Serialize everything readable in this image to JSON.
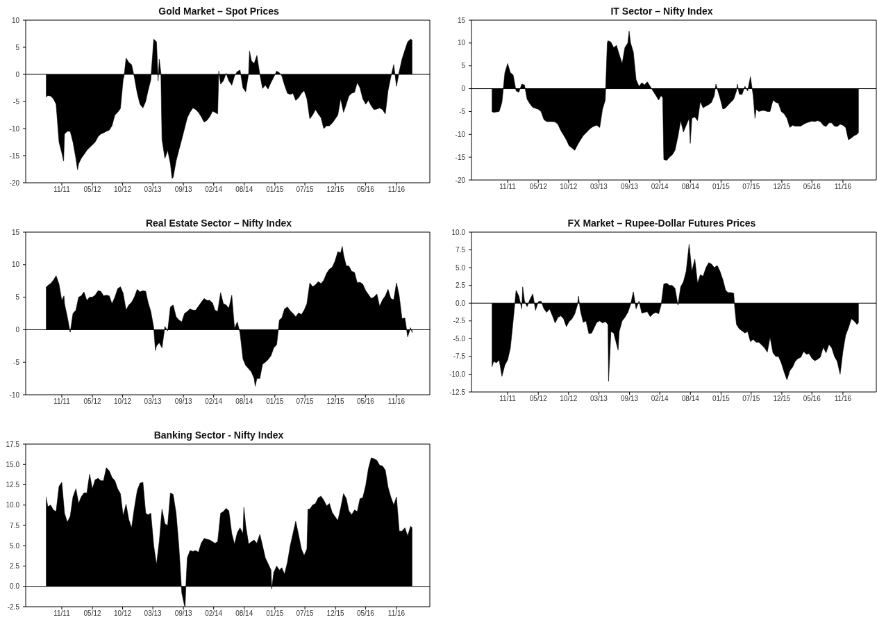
{
  "chart_data": [
    {
      "type": "area",
      "title": "Gold Market – Spot Prices",
      "color": "#000000",
      "x": [
        "2011-08-22",
        "2011-09-01",
        "2011-09-16",
        "2011-10-01",
        "2011-10-16",
        "2011-11-01",
        "2011-11-16",
        "2011-11-26",
        "2011-12-01",
        "2011-12-16",
        "2012-01-01",
        "2012-01-16",
        "2012-02-01",
        "2012-02-10",
        "2012-02-16",
        "2012-03-01",
        "2012-03-16",
        "2012-04-01",
        "2012-04-16",
        "2012-05-01",
        "2012-05-16",
        "2012-06-01",
        "2012-06-16",
        "2012-07-01",
        "2012-07-16",
        "2012-08-01",
        "2012-08-16",
        "2012-09-01",
        "2012-09-16",
        "2012-10-01",
        "2012-10-16",
        "2012-10-21",
        "2012-11-01",
        "2012-11-16",
        "2012-12-01",
        "2012-12-16",
        "2013-01-01",
        "2013-01-16",
        "2013-02-01",
        "2013-02-16",
        "2013-03-01",
        "2013-03-16",
        "2013-03-20",
        "2013-04-01",
        "2013-04-16",
        "2013-04-25",
        "2013-05-01",
        "2013-05-10",
        "2013-05-16",
        "2013-06-01",
        "2013-06-16",
        "2013-07-01",
        "2013-07-10",
        "2013-07-16",
        "2013-08-01",
        "2013-08-16",
        "2013-09-01",
        "2013-09-16",
        "2013-10-01",
        "2013-10-16",
        "2013-11-01",
        "2013-11-16",
        "2013-12-01",
        "2013-12-16",
        "2014-01-01",
        "2014-01-16",
        "2014-02-01",
        "2014-02-16",
        "2014-03-01",
        "2014-03-16",
        "2014-03-22",
        "2014-04-01",
        "2014-04-16",
        "2014-05-01",
        "2014-05-16",
        "2014-06-01",
        "2014-06-16",
        "2014-07-01",
        "2014-07-16",
        "2014-08-01",
        "2014-08-16",
        "2014-09-01",
        "2014-09-06",
        "2014-09-16",
        "2014-10-01",
        "2014-10-16",
        "2014-11-01",
        "2014-11-16",
        "2014-12-01",
        "2014-12-16",
        "2015-01-01",
        "2015-01-16",
        "2015-02-01",
        "2015-02-16",
        "2015-03-01",
        "2015-03-16",
        "2015-04-01",
        "2015-04-16",
        "2015-05-01",
        "2015-05-16",
        "2015-06-01",
        "2015-06-16",
        "2015-07-01",
        "2015-07-16",
        "2015-08-01",
        "2015-08-16",
        "2015-09-01",
        "2015-09-16",
        "2015-10-01",
        "2015-10-16",
        "2015-11-01",
        "2015-11-16",
        "2015-12-01",
        "2015-12-16",
        "2016-01-01",
        "2016-01-16",
        "2016-02-01",
        "2016-02-16",
        "2016-03-01",
        "2016-03-16",
        "2016-04-01",
        "2016-04-16",
        "2016-05-01",
        "2016-05-16",
        "2016-06-01",
        "2016-06-16",
        "2016-07-01",
        "2016-07-16",
        "2016-08-01",
        "2016-08-16",
        "2016-09-01",
        "2016-09-16",
        "2016-10-01",
        "2016-10-16",
        "2016-11-01",
        "2016-11-16",
        "2016-12-01",
        "2016-12-16",
        "2017-01-01",
        "2017-01-16",
        "2017-02-01",
        "2017-02-10"
      ],
      "values": [
        -4.2,
        -3.9,
        -4.0,
        -4.5,
        -5.5,
        -12.5,
        -14.5,
        -16,
        -11,
        -10.5,
        -10.5,
        -12.5,
        -15.5,
        -17.6,
        -16.5,
        -15.5,
        -14.8,
        -14,
        -13.5,
        -13,
        -12.5,
        -11.5,
        -11,
        -10.8,
        -10.5,
        -10.3,
        -9.5,
        -7.5,
        -7,
        -6.3,
        -1,
        -0.3,
        3,
        2.2,
        1.8,
        -0.5,
        -3.5,
        -5.5,
        -6.2,
        -5,
        -3,
        -1,
        1,
        6.5,
        6,
        -1.2,
        2.8,
        0.3,
        -12,
        -15.5,
        -14,
        -16.5,
        -19.2,
        -19,
        -16,
        -14,
        -12,
        -10,
        -8,
        -7,
        -6.2,
        -6.5,
        -7,
        -7.8,
        -8.8,
        -8.5,
        -7.8,
        -6.8,
        -7,
        -7.3,
        0.6,
        -1.8,
        -1.2,
        0.2,
        -1.2,
        -2,
        -0.3,
        0.5,
        0.8,
        -2.5,
        -3.2,
        0.2,
        4.3,
        2.5,
        2,
        3.5,
        0,
        -2.6,
        -2,
        -2.7,
        -1.5,
        -0.5,
        0.6,
        0.3,
        -0.3,
        -2,
        -3.5,
        -3.7,
        -3.5,
        -4.8,
        -4.3,
        -3.5,
        -3,
        -4.5,
        -8.2,
        -7.5,
        -6.5,
        -7.3,
        -8,
        -10,
        -9.5,
        -9.5,
        -9,
        -8.3,
        -7.5,
        -4.5,
        -7,
        -5.5,
        -4,
        -3.5,
        -3.3,
        -1.5,
        -2.5,
        -4.5,
        -5.5,
        -4.8,
        -5.8,
        -6.5,
        -6.4,
        -6.2,
        -6.5,
        -7.3,
        -3,
        -0.5,
        1.8,
        -2.2,
        0.5,
        2.8,
        4.5,
        6,
        6.5,
        6.3
      ],
      "xlim": [
        "2011-05-03",
        "2017-05-17"
      ],
      "xticks": [
        {
          "value": "2011-11-16",
          "label": "11/11"
        },
        {
          "value": "2012-05-01",
          "label": "05/12"
        },
        {
          "value": "2012-10-13",
          "label": "10/12"
        },
        {
          "value": "2013-03-27",
          "label": "03/13"
        },
        {
          "value": "2013-09-10",
          "label": "09/13"
        },
        {
          "value": "2014-02-22",
          "label": "02/14"
        },
        {
          "value": "2014-08-08",
          "label": "08/14"
        },
        {
          "value": "2015-01-22",
          "label": "01/15"
        },
        {
          "value": "2015-07-05",
          "label": "07/15"
        },
        {
          "value": "2015-12-19",
          "label": "12/15"
        },
        {
          "value": "2016-05-31",
          "label": "05/16"
        },
        {
          "value": "2016-11-16",
          "label": "11/16"
        }
      ],
      "ylim": [
        -20,
        10
      ],
      "yticks": [
        10,
        5,
        0,
        -5,
        -10,
        -15,
        -20
      ],
      "ref_lines": [
        {
          "axis": "y",
          "value": 0,
          "color": "#000000"
        }
      ]
    },
    {
      "type": "area",
      "title": "IT Sector – Nifty Index",
      "color": "#000000",
      "x": [
        "2011-08-22",
        "2011-09-01",
        "2011-09-16",
        "2011-10-01",
        "2011-10-16",
        "2011-11-01",
        "2011-11-16",
        "2011-12-01",
        "2011-12-16",
        "2012-01-01",
        "2012-01-16",
        "2012-02-01",
        "2012-02-16",
        "2012-03-01",
        "2012-03-16",
        "2012-04-01",
        "2012-04-16",
        "2012-05-01",
        "2012-05-16",
        "2012-06-01",
        "2012-06-16",
        "2012-07-01",
        "2012-07-16",
        "2012-08-01",
        "2012-08-16",
        "2012-09-01",
        "2012-09-16",
        "2012-10-01",
        "2012-10-16",
        "2012-11-01",
        "2012-11-16",
        "2012-12-01",
        "2012-12-16",
        "2013-01-01",
        "2013-01-16",
        "2013-02-01",
        "2013-02-16",
        "2013-03-01",
        "2013-03-16",
        "2013-04-01",
        "2013-04-16",
        "2013-05-01",
        "2013-05-12",
        "2013-05-16",
        "2013-06-01",
        "2013-06-16",
        "2013-07-01",
        "2013-07-16",
        "2013-08-01",
        "2013-08-16",
        "2013-09-01",
        "2013-09-08",
        "2013-09-16",
        "2013-10-01",
        "2013-10-16",
        "2013-11-01",
        "2013-11-16",
        "2013-12-01",
        "2013-12-16",
        "2014-01-01",
        "2014-01-16",
        "2014-02-01",
        "2014-02-16",
        "2014-03-01",
        "2014-03-10",
        "2014-03-16",
        "2014-04-01",
        "2014-04-16",
        "2014-05-01",
        "2014-05-16",
        "2014-06-01",
        "2014-06-16",
        "2014-07-01",
        "2014-07-16",
        "2014-08-01",
        "2014-08-07",
        "2014-08-16",
        "2014-09-01",
        "2014-09-16",
        "2014-10-01",
        "2014-10-16",
        "2014-11-01",
        "2014-11-16",
        "2014-12-01",
        "2014-12-16",
        "2014-12-25",
        "2015-01-01",
        "2015-01-16",
        "2015-02-01",
        "2015-02-16",
        "2015-03-01",
        "2015-03-16",
        "2015-04-01",
        "2015-04-16",
        "2015-04-21",
        "2015-05-01",
        "2015-05-16",
        "2015-06-01",
        "2015-06-16",
        "2015-07-01",
        "2015-07-16",
        "2015-07-26",
        "2015-08-01",
        "2015-08-16",
        "2015-09-01",
        "2015-09-16",
        "2015-10-01",
        "2015-10-16",
        "2015-11-01",
        "2015-11-16",
        "2015-12-01",
        "2015-12-16",
        "2016-01-01",
        "2016-01-16",
        "2016-02-01",
        "2016-02-16",
        "2016-03-01",
        "2016-03-16",
        "2016-04-01",
        "2016-04-16",
        "2016-05-01",
        "2016-05-16",
        "2016-06-01",
        "2016-06-16",
        "2016-07-01",
        "2016-07-16",
        "2016-08-01",
        "2016-08-16",
        "2016-09-01",
        "2016-09-16",
        "2016-10-01",
        "2016-10-16",
        "2016-11-01",
        "2016-11-16",
        "2016-12-01",
        "2016-12-16",
        "2017-01-01",
        "2017-01-16",
        "2017-02-01",
        "2017-02-10"
      ],
      "values": [
        -5,
        -5.2,
        -5.1,
        -5,
        -3,
        3.5,
        5.5,
        3.5,
        3,
        -0.5,
        -0.8,
        1,
        0.8,
        -2.3,
        -3.3,
        -4.1,
        -4.3,
        -4.5,
        -5,
        -6.8,
        -7.2,
        -7.2,
        -7.2,
        -7.3,
        -7.8,
        -9.2,
        -10.2,
        -11.2,
        -12.5,
        -13,
        -13.5,
        -12.3,
        -11.3,
        -10.3,
        -9.7,
        -9,
        -8.5,
        -8.2,
        -8,
        -8.5,
        -4.5,
        -2.5,
        10,
        10.5,
        10.2,
        9,
        9.5,
        7.5,
        5.5,
        9,
        10,
        12.6,
        10,
        8,
        2,
        0.5,
        1.3,
        0.8,
        1.5,
        0.5,
        -0.5,
        -1.5,
        -2.5,
        -1.5,
        -2,
        -15.5,
        -15.7,
        -15,
        -14.5,
        -13.5,
        -10.5,
        -7,
        -9.5,
        -8,
        -6.5,
        -12,
        -6.5,
        -6.2,
        -7,
        -2.8,
        -4.2,
        -3.8,
        -3.5,
        -3,
        -1.5,
        1,
        0,
        -2,
        -4.5,
        -4.2,
        -3.6,
        -3,
        -2.3,
        -0.5,
        1,
        -1.2,
        -1.3,
        0.5,
        -0.5,
        2.6,
        -1.5,
        -6.5,
        -4.5,
        -5,
        -4.8,
        -4.8,
        -5,
        -5,
        -2.5,
        -3,
        -3.2,
        -5,
        -5.5,
        -6.5,
        -8.5,
        -8,
        -8.2,
        -8.2,
        -8.2,
        -7.8,
        -7.5,
        -7.3,
        -7.1,
        -7.2,
        -7,
        -7.2,
        -8,
        -8.3,
        -7.5,
        -7.5,
        -8.2,
        -8.3,
        -7.8,
        -8,
        -8.5,
        -11.2,
        -10.8,
        -10.3,
        -10,
        -9.5
      ],
      "xlim": [
        "2011-05-03",
        "2017-05-17"
      ],
      "xticks": [
        {
          "value": "2011-11-16",
          "label": "11/11"
        },
        {
          "value": "2012-05-01",
          "label": "05/12"
        },
        {
          "value": "2012-10-13",
          "label": "10/12"
        },
        {
          "value": "2013-03-27",
          "label": "03/13"
        },
        {
          "value": "2013-09-10",
          "label": "09/13"
        },
        {
          "value": "2014-02-22",
          "label": "02/14"
        },
        {
          "value": "2014-08-08",
          "label": "08/14"
        },
        {
          "value": "2015-01-22",
          "label": "01/15"
        },
        {
          "value": "2015-07-05",
          "label": "07/15"
        },
        {
          "value": "2015-12-19",
          "label": "12/15"
        },
        {
          "value": "2016-05-31",
          "label": "05/16"
        },
        {
          "value": "2016-11-16",
          "label": "11/16"
        }
      ],
      "ylim": [
        -20,
        15
      ],
      "yticks": [
        15,
        10,
        5,
        0,
        -5,
        -10,
        -15,
        -20
      ],
      "ref_lines": [
        {
          "axis": "y",
          "value": 0,
          "color": "#000000"
        }
      ]
    },
    {
      "type": "area",
      "title": "Real Estate Sector – Nifty Index",
      "color": "#000000",
      "x": [
        "2011-08-22",
        "2011-09-01",
        "2011-09-16",
        "2011-10-01",
        "2011-10-16",
        "2011-11-01",
        "2011-11-16",
        "2011-11-28",
        "2011-12-01",
        "2011-12-16",
        "2012-01-01",
        "2012-01-16",
        "2012-02-01",
        "2012-02-16",
        "2012-03-01",
        "2012-03-16",
        "2012-04-01",
        "2012-04-16",
        "2012-05-01",
        "2012-05-16",
        "2012-06-01",
        "2012-06-16",
        "2012-07-01",
        "2012-07-16",
        "2012-08-01",
        "2012-08-16",
        "2012-09-01",
        "2012-09-16",
        "2012-10-01",
        "2012-10-16",
        "2012-11-01",
        "2012-11-16",
        "2012-12-01",
        "2012-12-16",
        "2013-01-01",
        "2013-01-16",
        "2013-02-01",
        "2013-02-16",
        "2013-03-01",
        "2013-03-16",
        "2013-04-01",
        "2013-04-10",
        "2013-04-16",
        "2013-05-01",
        "2013-05-16",
        "2013-06-01",
        "2013-06-16",
        "2013-07-01",
        "2013-07-16",
        "2013-08-01",
        "2013-08-16",
        "2013-09-01",
        "2013-09-16",
        "2013-10-01",
        "2013-10-16",
        "2013-11-01",
        "2013-11-16",
        "2013-12-01",
        "2013-12-16",
        "2014-01-01",
        "2014-01-16",
        "2014-02-01",
        "2014-02-16",
        "2014-03-01",
        "2014-03-16",
        "2014-04-01",
        "2014-04-16",
        "2014-05-01",
        "2014-05-16",
        "2014-06-01",
        "2014-06-16",
        "2014-07-01",
        "2014-07-16",
        "2014-08-01",
        "2014-08-16",
        "2014-09-01",
        "2014-09-16",
        "2014-10-01",
        "2014-10-07",
        "2014-10-16",
        "2014-11-01",
        "2014-11-16",
        "2014-12-01",
        "2014-12-16",
        "2015-01-01",
        "2015-01-16",
        "2015-02-01",
        "2015-02-16",
        "2015-03-01",
        "2015-03-16",
        "2015-04-01",
        "2015-04-16",
        "2015-05-01",
        "2015-05-16",
        "2015-06-01",
        "2015-06-16",
        "2015-07-01",
        "2015-07-16",
        "2015-08-01",
        "2015-08-16",
        "2015-09-01",
        "2015-09-16",
        "2015-10-01",
        "2015-10-16",
        "2015-11-01",
        "2015-11-16",
        "2015-12-01",
        "2015-12-16",
        "2016-01-01",
        "2016-01-16",
        "2016-01-25",
        "2016-02-01",
        "2016-02-16",
        "2016-03-01",
        "2016-03-16",
        "2016-04-01",
        "2016-04-16",
        "2016-05-01",
        "2016-05-16",
        "2016-06-01",
        "2016-06-16",
        "2016-07-01",
        "2016-07-16",
        "2016-08-01",
        "2016-08-16",
        "2016-09-01",
        "2016-09-16",
        "2016-10-01",
        "2016-10-16",
        "2016-11-01",
        "2016-11-16",
        "2016-12-01",
        "2016-12-16",
        "2017-01-01",
        "2017-01-16",
        "2017-02-01",
        "2017-02-10"
      ],
      "values": [
        6.5,
        6.8,
        7.1,
        7.6,
        8.3,
        7,
        4.5,
        5.2,
        4,
        2,
        -0.4,
        2.5,
        3,
        5,
        5.2,
        5.8,
        4.5,
        5,
        5,
        5.3,
        6,
        5.9,
        5.2,
        5.3,
        5.2,
        4,
        5,
        6.3,
        6.6,
        5.6,
        3,
        3.8,
        4.2,
        5,
        6.2,
        5.8,
        6,
        5.9,
        4.2,
        2.8,
        0.3,
        -3.2,
        -2.5,
        -2,
        -2.8,
        0.5,
        -0.2,
        3.5,
        3.8,
        2,
        1.5,
        1.2,
        2.5,
        2.8,
        3.2,
        3,
        3,
        3.6,
        4.2,
        4.8,
        4.5,
        4.5,
        4.1,
        3,
        2.8,
        5.7,
        4,
        3.8,
        3.3,
        5.3,
        0.2,
        1.2,
        -0.5,
        -4.5,
        -5.5,
        -6,
        -6.5,
        -7.5,
        -8.7,
        -7.5,
        -7.5,
        -5.3,
        -5,
        -4.6,
        -4,
        -2.8,
        -2.3,
        1.5,
        1.8,
        3.2,
        3.5,
        2.9,
        2.5,
        2,
        2.6,
        2.3,
        3,
        4,
        7.2,
        6.6,
        6.9,
        7.4,
        7.1,
        7.6,
        8.7,
        9.3,
        9.6,
        10.5,
        12,
        11.8,
        12.8,
        11.5,
        9.8,
        9.8,
        9,
        8.8,
        7.2,
        7.3,
        7,
        6,
        5.4,
        4.8,
        5,
        5.5,
        3.6,
        4.6,
        5.2,
        6.2,
        4.8,
        4.6,
        7.2,
        5.2,
        1.7,
        1.8,
        -1.1,
        0.3,
        -0.5
      ],
      "xlim": [
        "2011-05-03",
        "2017-05-17"
      ],
      "xticks": [
        {
          "value": "2011-11-16",
          "label": "11/11"
        },
        {
          "value": "2012-05-01",
          "label": "05/12"
        },
        {
          "value": "2012-10-13",
          "label": "10/12"
        },
        {
          "value": "2013-03-27",
          "label": "03/13"
        },
        {
          "value": "2013-09-10",
          "label": "09/13"
        },
        {
          "value": "2014-02-22",
          "label": "02/14"
        },
        {
          "value": "2014-08-08",
          "label": "08/14"
        },
        {
          "value": "2015-01-22",
          "label": "01/15"
        },
        {
          "value": "2015-07-05",
          "label": "07/15"
        },
        {
          "value": "2015-12-19",
          "label": "12/15"
        },
        {
          "value": "2016-05-31",
          "label": "05/16"
        },
        {
          "value": "2016-11-16",
          "label": "11/16"
        }
      ],
      "ylim": [
        -10,
        15
      ],
      "yticks": [
        15,
        10,
        5,
        0,
        -5,
        -10
      ],
      "ref_lines": [
        {
          "axis": "y",
          "value": 0,
          "color": "#000000"
        }
      ]
    },
    {
      "type": "area",
      "title": "FX Market – Rupee-Dollar Futures Prices",
      "color": "#000000",
      "x": [
        "2011-08-22",
        "2011-09-01",
        "2011-09-16",
        "2011-10-01",
        "2011-10-16",
        "2011-11-01",
        "2011-11-16",
        "2011-12-01",
        "2011-12-16",
        "2012-01-01",
        "2012-01-16",
        "2012-02-01",
        "2012-02-06",
        "2012-02-16",
        "2012-03-01",
        "2012-03-16",
        "2012-04-01",
        "2012-04-16",
        "2012-05-01",
        "2012-05-16",
        "2012-06-01",
        "2012-06-16",
        "2012-07-01",
        "2012-07-16",
        "2012-08-01",
        "2012-08-16",
        "2012-09-01",
        "2012-09-16",
        "2012-10-01",
        "2012-10-16",
        "2012-11-01",
        "2012-11-16",
        "2012-12-01",
        "2012-12-06",
        "2012-12-16",
        "2013-01-01",
        "2013-01-16",
        "2013-02-01",
        "2013-02-16",
        "2013-03-01",
        "2013-03-16",
        "2013-04-01",
        "2013-04-16",
        "2013-05-01",
        "2013-05-16",
        "2013-05-19",
        "2013-06-01",
        "2013-06-16",
        "2013-07-01",
        "2013-07-10",
        "2013-07-16",
        "2013-08-01",
        "2013-08-16",
        "2013-09-01",
        "2013-09-16",
        "2013-10-01",
        "2013-10-16",
        "2013-11-01",
        "2013-11-16",
        "2013-12-01",
        "2013-12-16",
        "2014-01-01",
        "2014-01-16",
        "2014-02-01",
        "2014-02-16",
        "2014-03-01",
        "2014-03-16",
        "2014-04-01",
        "2014-04-16",
        "2014-05-01",
        "2014-05-16",
        "2014-06-01",
        "2014-06-16",
        "2014-07-01",
        "2014-07-16",
        "2014-08-01",
        "2014-08-16",
        "2014-09-01",
        "2014-09-16",
        "2014-10-01",
        "2014-10-16",
        "2014-11-01",
        "2014-11-16",
        "2014-12-01",
        "2014-12-16",
        "2015-01-01",
        "2015-01-16",
        "2015-02-01",
        "2015-02-16",
        "2015-03-01",
        "2015-03-16",
        "2015-04-01",
        "2015-04-06",
        "2015-04-16",
        "2015-05-01",
        "2015-05-16",
        "2015-06-01",
        "2015-06-16",
        "2015-07-01",
        "2015-07-16",
        "2015-08-01",
        "2015-08-16",
        "2015-09-01",
        "2015-09-16",
        "2015-10-01",
        "2015-10-16",
        "2015-11-01",
        "2015-11-16",
        "2015-12-01",
        "2015-12-16",
        "2016-01-01",
        "2016-01-16",
        "2016-02-01",
        "2016-02-16",
        "2016-03-01",
        "2016-03-16",
        "2016-04-01",
        "2016-04-16",
        "2016-05-01",
        "2016-05-16",
        "2016-06-01",
        "2016-06-16",
        "2016-07-01",
        "2016-07-16",
        "2016-08-01",
        "2016-08-16",
        "2016-09-01",
        "2016-09-16",
        "2016-10-01",
        "2016-10-16",
        "2016-11-01",
        "2016-11-16",
        "2016-12-01",
        "2016-12-16",
        "2017-01-01",
        "2017-01-16",
        "2017-02-01",
        "2017-02-10"
      ],
      "values": [
        -9,
        -8.2,
        -8.4,
        -8,
        -10.3,
        -8.7,
        -8,
        -6.3,
        -2.5,
        1.8,
        1,
        -0.8,
        2.3,
        0.3,
        -0.5,
        0.5,
        1.3,
        -1,
        0.2,
        0.3,
        -0.8,
        -1.3,
        -0.8,
        -1.7,
        -2.8,
        -2,
        -1.8,
        -2.2,
        -3.3,
        -2.6,
        -2.2,
        -1.5,
        -0.2,
        1,
        -1,
        -2.7,
        -2.5,
        -4.3,
        -4.2,
        -3.5,
        -2.7,
        -2.5,
        -2.8,
        -2.6,
        -3,
        -11,
        -4,
        -4.2,
        -5.7,
        -6.6,
        -4,
        -2.5,
        -2,
        -1.3,
        -0.2,
        1.6,
        -0.8,
        0.3,
        -1.4,
        -1.3,
        -1.2,
        -1.9,
        -1.5,
        -1.3,
        -1.5,
        -0.3,
        2.7,
        2.8,
        2.5,
        2.5,
        2.1,
        -0.3,
        2.3,
        3,
        4.5,
        8.3,
        4.5,
        6.2,
        2.8,
        4,
        3.8,
        5,
        5.7,
        5.5,
        5,
        5.3,
        4.5,
        3.3,
        1.8,
        1.5,
        1.5,
        1.4,
        -0.5,
        -3,
        -3.6,
        -3.9,
        -4.2,
        -4,
        -5.4,
        -5.1,
        -5.5,
        -5.5,
        -5.9,
        -6.3,
        -6.9,
        -4.8,
        -7,
        -7.5,
        -7.5,
        -8.4,
        -9.7,
        -10.8,
        -9.5,
        -9,
        -8.2,
        -7.8,
        -7.6,
        -6.8,
        -7.2,
        -7.1,
        -7.8,
        -8.1,
        -7.9,
        -7.6,
        -6.2,
        -7,
        -5.8,
        -6.3,
        -7.5,
        -8.2,
        -10,
        -6.8,
        -4.5,
        -3.5,
        -2.2,
        -2.5,
        -3,
        -2.7
      ],
      "xlim": [
        "2011-05-03",
        "2017-05-17"
      ],
      "xticks": [
        {
          "value": "2011-11-16",
          "label": "11/11"
        },
        {
          "value": "2012-05-01",
          "label": "05/12"
        },
        {
          "value": "2012-10-13",
          "label": "10/12"
        },
        {
          "value": "2013-03-27",
          "label": "03/13"
        },
        {
          "value": "2013-09-10",
          "label": "09/13"
        },
        {
          "value": "2014-02-22",
          "label": "02/14"
        },
        {
          "value": "2014-08-08",
          "label": "08/14"
        },
        {
          "value": "2015-01-22",
          "label": "01/15"
        },
        {
          "value": "2015-07-05",
          "label": "07/15"
        },
        {
          "value": "2015-12-19",
          "label": "12/15"
        },
        {
          "value": "2016-05-31",
          "label": "05/16"
        },
        {
          "value": "2016-11-16",
          "label": "11/16"
        }
      ],
      "ylim": [
        -12.5,
        10
      ],
      "yticks": [
        {
          "value": 10,
          "label": "10.0"
        },
        7.5,
        {
          "value": 5,
          "label": "5.0"
        },
        2.5,
        {
          "value": 0,
          "label": "0.0"
        },
        -2.5,
        {
          "value": -5,
          "label": "-5.0"
        },
        -7.5,
        {
          "value": -10,
          "label": "-10.0"
        },
        -12.5
      ],
      "ref_lines": [
        {
          "axis": "y",
          "value": 0,
          "color": "#000000"
        }
      ]
    },
    {
      "type": "area",
      "title": "Banking Sector - Nifty Index",
      "color": "#000000",
      "x": [
        "2011-08-22",
        "2011-09-01",
        "2011-09-16",
        "2011-10-01",
        "2011-10-16",
        "2011-11-01",
        "2011-11-16",
        "2011-12-01",
        "2011-12-16",
        "2012-01-01",
        "2012-01-16",
        "2012-02-01",
        "2012-02-16",
        "2012-03-01",
        "2012-03-16",
        "2012-04-01",
        "2012-04-16",
        "2012-05-01",
        "2012-05-16",
        "2012-06-01",
        "2012-06-16",
        "2012-07-01",
        "2012-07-16",
        "2012-08-01",
        "2012-08-16",
        "2012-09-01",
        "2012-09-16",
        "2012-10-01",
        "2012-10-16",
        "2012-11-01",
        "2012-11-16",
        "2012-12-01",
        "2012-12-16",
        "2013-01-01",
        "2013-01-16",
        "2013-02-01",
        "2013-02-16",
        "2013-03-01",
        "2013-03-16",
        "2013-04-01",
        "2013-04-16",
        "2013-05-01",
        "2013-05-16",
        "2013-06-01",
        "2013-06-16",
        "2013-07-01",
        "2013-07-16",
        "2013-08-01",
        "2013-08-16",
        "2013-09-01",
        "2013-09-16",
        "2013-09-19",
        "2013-09-25",
        "2013-10-01",
        "2013-10-16",
        "2013-11-01",
        "2013-11-16",
        "2013-12-01",
        "2013-12-16",
        "2014-01-01",
        "2014-01-16",
        "2014-02-01",
        "2014-02-16",
        "2014-03-01",
        "2014-03-16",
        "2014-04-01",
        "2014-04-16",
        "2014-05-01",
        "2014-05-16",
        "2014-06-01",
        "2014-06-16",
        "2014-07-01",
        "2014-07-16",
        "2014-08-01",
        "2014-08-06",
        "2014-08-16",
        "2014-09-01",
        "2014-09-16",
        "2014-10-01",
        "2014-10-16",
        "2014-11-01",
        "2014-11-16",
        "2014-12-01",
        "2014-12-16",
        "2015-01-01",
        "2015-01-05",
        "2015-01-16",
        "2015-02-01",
        "2015-02-16",
        "2015-03-01",
        "2015-03-16",
        "2015-04-01",
        "2015-04-16",
        "2015-05-01",
        "2015-05-16",
        "2015-06-01",
        "2015-06-16",
        "2015-07-01",
        "2015-07-16",
        "2015-07-22",
        "2015-08-01",
        "2015-08-16",
        "2015-09-01",
        "2015-09-16",
        "2015-10-01",
        "2015-10-16",
        "2015-11-01",
        "2015-11-16",
        "2015-12-01",
        "2015-12-16",
        "2016-01-01",
        "2016-01-16",
        "2016-02-01",
        "2016-02-16",
        "2016-03-01",
        "2016-03-16",
        "2016-04-01",
        "2016-04-16",
        "2016-05-01",
        "2016-05-16",
        "2016-06-01",
        "2016-06-16",
        "2016-07-01",
        "2016-07-16",
        "2016-08-01",
        "2016-08-16",
        "2016-09-01",
        "2016-09-16",
        "2016-10-01",
        "2016-10-16",
        "2016-11-01",
        "2016-11-16",
        "2016-12-01",
        "2016-12-16",
        "2017-01-01",
        "2017-01-16",
        "2017-02-01",
        "2017-02-10"
      ],
      "values": [
        11,
        9.8,
        10,
        9.4,
        9.2,
        12.3,
        12.8,
        9,
        7.9,
        8.6,
        11,
        12,
        10.2,
        11,
        11.5,
        11.5,
        13.8,
        12,
        13.1,
        13.3,
        13,
        13,
        14.6,
        14.2,
        13.4,
        13,
        12,
        11.4,
        8.7,
        10.1,
        8.2,
        7.2,
        9.6,
        11.8,
        12.7,
        12.8,
        9,
        8.8,
        9,
        5,
        2.7,
        5.5,
        9.5,
        7.7,
        7.5,
        11.5,
        11.3,
        9,
        5,
        -0.8,
        -2.4,
        -2.5,
        0.8,
        3.5,
        4.4,
        4.3,
        4.4,
        4.2,
        5.3,
        5.9,
        5.8,
        5.7,
        5.5,
        5.3,
        5.5,
        9,
        9.2,
        9.6,
        9.3,
        6.5,
        5.2,
        6.6,
        7.2,
        6.5,
        9.7,
        7.5,
        5.2,
        5.5,
        5.7,
        5.3,
        6.4,
        5,
        3.5,
        2.8,
        2,
        -0.3,
        1.7,
        2.5,
        2,
        2.3,
        1.5,
        3,
        5,
        6.5,
        8,
        6.3,
        4.6,
        3.8,
        4.6,
        9.5,
        9.5,
        10,
        10.2,
        10.9,
        11.1,
        10.6,
        9.9,
        10.2,
        9.1,
        8.6,
        8.1,
        9.6,
        11.4,
        10.8,
        9.3,
        8.8,
        9.4,
        9.2,
        10.8,
        10.9,
        12.4,
        14.5,
        15.8,
        15.7,
        15.5,
        14.9,
        14.8,
        14.3,
        12.2,
        11,
        10,
        11,
        6.8,
        6.8,
        7.2,
        6.2,
        7.4,
        7.2
      ],
      "xlim": [
        "2011-05-03",
        "2017-05-17"
      ],
      "xticks": [
        {
          "value": "2011-11-16",
          "label": "11/11"
        },
        {
          "value": "2012-05-01",
          "label": "05/12"
        },
        {
          "value": "2012-10-13",
          "label": "10/12"
        },
        {
          "value": "2013-03-27",
          "label": "03/13"
        },
        {
          "value": "2013-09-10",
          "label": "09/13"
        },
        {
          "value": "2014-02-22",
          "label": "02/14"
        },
        {
          "value": "2014-08-08",
          "label": "08/14"
        },
        {
          "value": "2015-01-22",
          "label": "01/15"
        },
        {
          "value": "2015-07-05",
          "label": "07/15"
        },
        {
          "value": "2015-12-19",
          "label": "12/15"
        },
        {
          "value": "2016-05-31",
          "label": "05/16"
        },
        {
          "value": "2016-11-16",
          "label": "11/16"
        }
      ],
      "ylim": [
        -2.5,
        17.5
      ],
      "yticks": [
        17.5,
        {
          "value": 15,
          "label": "15.0"
        },
        12.5,
        {
          "value": 10,
          "label": "10.0"
        },
        7.5,
        {
          "value": 5,
          "label": "5.0"
        },
        2.5,
        {
          "value": 0,
          "label": "0.0"
        },
        -2.5
      ],
      "ref_lines": [
        {
          "axis": "y",
          "value": 0,
          "color": "#000000"
        }
      ]
    }
  ]
}
